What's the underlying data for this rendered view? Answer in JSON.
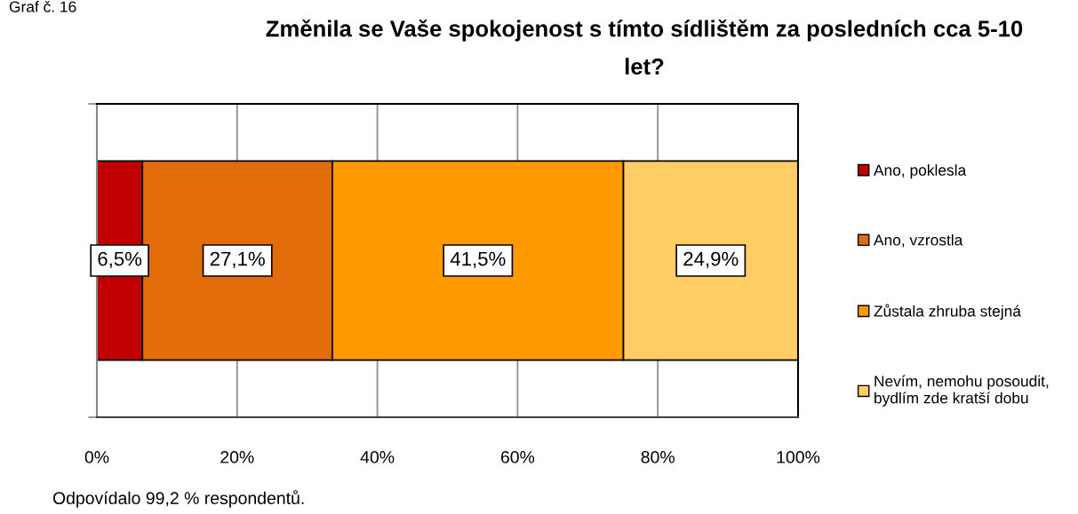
{
  "chart_data": {
    "type": "bar",
    "orientation": "horizontal",
    "stacked": true,
    "title": "Změnila se Vaše spokojenost s tímto sídlištěm za posledních cca 5-10\nlet?",
    "categories": [
      null
    ],
    "series": [
      {
        "name": "Ano, poklesla",
        "color": "#c00000",
        "values": [
          6.5
        ],
        "value_labels": [
          "6,5%"
        ]
      },
      {
        "name": "Ano, vzrostla",
        "color": "#e36c0a",
        "values": [
          27.1
        ],
        "value_labels": [
          "27,1%"
        ]
      },
      {
        "name": "Zůstala zhruba stejná",
        "color": "#ff9900",
        "values": [
          41.5
        ],
        "value_labels": [
          "41,5%"
        ]
      },
      {
        "name": "Nevím, nemohu posoudit,\nbydlím zde kratší dobu",
        "color": "#ffcc66",
        "values": [
          24.9
        ],
        "value_labels": [
          "24,9%"
        ]
      }
    ],
    "xlim": [
      0,
      100
    ],
    "xticks": [
      {
        "value": 0,
        "label": "0%"
      },
      {
        "value": 20,
        "label": "20%"
      },
      {
        "value": 40,
        "label": "40%"
      },
      {
        "value": 60,
        "label": "60%"
      },
      {
        "value": 80,
        "label": "80%"
      },
      {
        "value": 100,
        "label": "100%"
      }
    ],
    "grid": "x",
    "legend": "right",
    "annotations": [
      "Graf č. 16",
      "Odpovídalo 99,2 % respondentů."
    ]
  }
}
